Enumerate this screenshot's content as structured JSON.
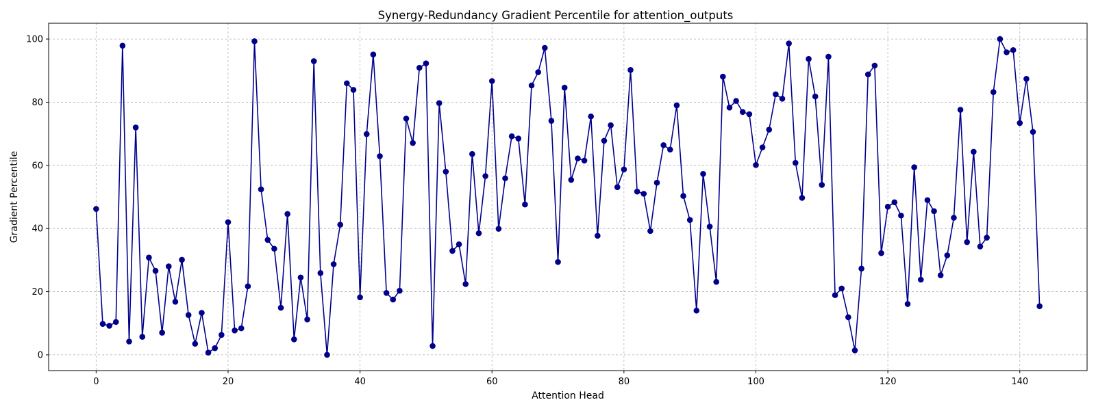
{
  "chart_data": {
    "type": "line",
    "title": "Synergy-Redundancy Gradient Percentile for attention_outputs",
    "xlabel": "Attention Head",
    "ylabel": "Gradient Percentile",
    "xlim": [
      -7.2,
      150.2
    ],
    "ylim": [
      -5,
      105
    ],
    "x_ticks": [
      0,
      20,
      40,
      60,
      80,
      100,
      120,
      140
    ],
    "y_ticks": [
      0,
      20,
      40,
      60,
      80,
      100
    ],
    "grid": true,
    "legend": "none",
    "series": [
      {
        "color": "#00008b",
        "marker": "circle",
        "x": [
          0,
          1,
          2,
          3,
          4,
          5,
          6,
          7,
          8,
          9,
          10,
          11,
          12,
          13,
          14,
          15,
          16,
          17,
          18,
          19,
          20,
          21,
          22,
          23,
          24,
          25,
          26,
          27,
          28,
          29,
          30,
          31,
          32,
          33,
          34,
          35,
          36,
          37,
          38,
          39,
          40,
          41,
          42,
          43,
          44,
          45,
          46,
          47,
          48,
          49,
          50,
          51,
          52,
          53,
          54,
          55,
          56,
          57,
          58,
          59,
          60,
          61,
          62,
          63,
          64,
          65,
          66,
          67,
          68,
          69,
          70,
          71,
          72,
          73,
          74,
          75,
          76,
          77,
          78,
          79,
          80,
          81,
          82,
          83,
          84,
          85,
          86,
          87,
          88,
          89,
          90,
          91,
          92,
          93,
          94,
          95,
          96,
          97,
          98,
          99,
          100,
          101,
          102,
          103,
          104,
          105,
          106,
          107,
          108,
          109,
          110,
          111,
          112,
          113,
          114,
          115,
          116,
          117,
          118,
          119,
          120,
          121,
          122,
          123,
          124,
          125,
          126,
          127,
          128,
          129,
          130,
          131,
          132,
          133,
          134,
          135,
          136,
          137,
          138,
          139,
          140,
          141,
          142,
          143
        ],
        "values": [
          46.2,
          9.8,
          9.2,
          10.4,
          97.9,
          4.2,
          72.0,
          5.7,
          30.8,
          26.6,
          7.0,
          28.0,
          16.8,
          30.1,
          12.6,
          3.5,
          13.3,
          0.7,
          2.1,
          6.3,
          42.0,
          7.7,
          8.4,
          21.7,
          99.3,
          52.4,
          36.4,
          33.6,
          14.9,
          44.6,
          4.9,
          24.5,
          11.2,
          93.0,
          25.9,
          0.0,
          28.7,
          41.2,
          86.0,
          83.9,
          18.2,
          69.9,
          95.1,
          62.9,
          19.6,
          17.5,
          20.3,
          74.8,
          67.1,
          90.9,
          92.3,
          2.8,
          79.7,
          58.0,
          32.9,
          35.0,
          22.4,
          63.6,
          38.5,
          56.6,
          86.7,
          39.9,
          55.9,
          69.2,
          68.5,
          47.6,
          85.3,
          89.5,
          97.2,
          74.1,
          29.4,
          84.6,
          55.4,
          62.2,
          61.5,
          75.5,
          37.7,
          67.8,
          72.7,
          53.1,
          58.7,
          90.2,
          51.7,
          51.0,
          39.2,
          54.5,
          66.4,
          65.0,
          79.0,
          50.3,
          42.7,
          14.0,
          57.3,
          40.6,
          23.1,
          88.1,
          78.3,
          80.4,
          76.9,
          76.2,
          60.1,
          65.7,
          71.3,
          82.5,
          81.1,
          98.6,
          60.8,
          49.7,
          93.7,
          81.8,
          53.8,
          94.4,
          18.9,
          21.0,
          11.9,
          1.4,
          27.3,
          88.8,
          91.6,
          32.2,
          46.9,
          48.3,
          44.1,
          16.1,
          59.4,
          23.8,
          49.0,
          45.5,
          25.2,
          31.5,
          43.4,
          77.6,
          35.7,
          64.3,
          34.3,
          37.1,
          83.2,
          100.0,
          95.8,
          96.5,
          73.4,
          87.4,
          70.6,
          15.4
        ]
      }
    ]
  }
}
